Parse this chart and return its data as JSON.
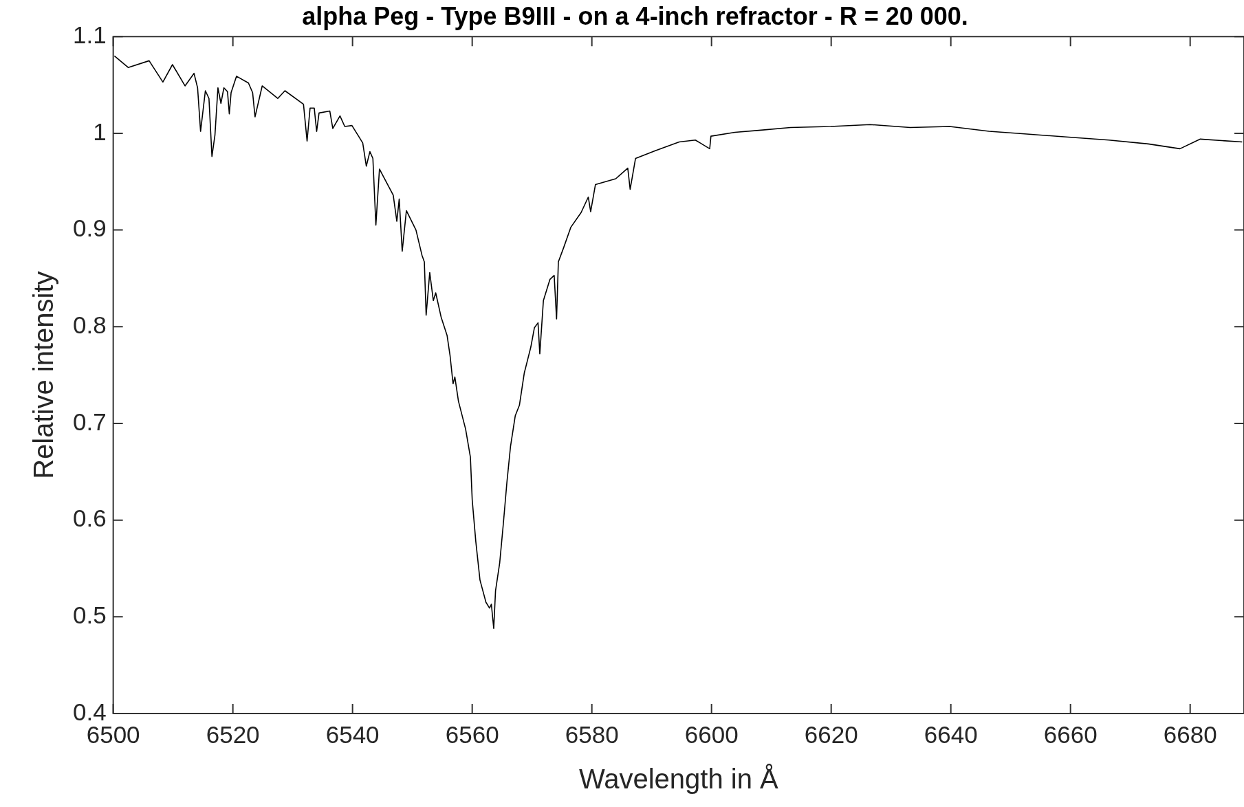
{
  "chart_data": {
    "type": "line",
    "title": "alpha Peg - Type B9III - on a 4-inch refractor - R = 20 000.",
    "xlabel": "Wavelength in Å",
    "ylabel": "Relative intensity",
    "xlim": [
      6500,
      6689
    ],
    "xticks": [
      6500,
      6520,
      6540,
      6560,
      6580,
      6600,
      6620,
      6640,
      6660,
      6680
    ],
    "ylim": [
      0.4,
      1.1
    ],
    "yticks": [
      0.4,
      0.5,
      0.6,
      0.7,
      0.8,
      0.9,
      1,
      1.1
    ],
    "grid": false,
    "legend": false,
    "marker": "none",
    "line_style": "solid",
    "series": [
      {
        "color": "#000000",
        "x": [
          6500.2,
          6502.5,
          6506,
          6508.3,
          6509.9,
          6512,
          6513.5,
          6514.1,
          6514.6,
          6515.4,
          6516,
          6516.5,
          6517,
          6517.5,
          6518,
          6518.5,
          6519.1,
          6519.4,
          6519.7,
          6520.6,
          6522.6,
          6523.3,
          6523.7,
          6524.9,
          6527.5,
          6528.7,
          6531.8,
          6532.4,
          6532.9,
          6533.6,
          6534,
          6534.4,
          6536.2,
          6536.7,
          6537.9,
          6538.7,
          6539.9,
          6541.7,
          6542.3,
          6542.9,
          6543.4,
          6543.9,
          6544.5,
          6545.6,
          6546.8,
          6547.4,
          6547.8,
          6548.3,
          6549,
          6550.6,
          6551.6,
          6552,
          6552.3,
          6552.9,
          6553.5,
          6553.9,
          6554.8,
          6555.8,
          6556.3,
          6556.8,
          6557.1,
          6557.7,
          6558.9,
          6559.7,
          6560,
          6560.6,
          6561.3,
          6562.3,
          6562.9,
          6563.2,
          6563.6,
          6563.9,
          6564.6,
          6565.2,
          6565.8,
          6566.4,
          6567.2,
          6567.9,
          6568.7,
          6569.8,
          6570.4,
          6571,
          6571.3,
          6571.9,
          6573,
          6573.7,
          6574.1,
          6574.4,
          6575.3,
          6576.5,
          6578.2,
          6579.4,
          6579.8,
          6580.6,
          6584,
          6586,
          6586.4,
          6587.3,
          6590.6,
          6594.6,
          6597.3,
          6599.7,
          6599.9,
          6603.9,
          6607.9,
          6613.2,
          6619.9,
          6626.5,
          6633.2,
          6639.8,
          6646.4,
          6653.1,
          6659.7,
          6666.4,
          6673,
          6678.3,
          6681.7,
          6688.7
        ],
        "values": [
          1.08,
          1.068,
          1.075,
          1.053,
          1.071,
          1.049,
          1.062,
          1.047,
          1.002,
          1.044,
          1.036,
          0.976,
          0.998,
          1.047,
          1.031,
          1.047,
          1.043,
          1.02,
          1.042,
          1.059,
          1.052,
          1.042,
          1.017,
          1.049,
          1.036,
          1.044,
          1.03,
          0.992,
          1.026,
          1.026,
          1.002,
          1.021,
          1.023,
          1.005,
          1.018,
          1.007,
          1.008,
          0.99,
          0.966,
          0.981,
          0.974,
          0.905,
          0.963,
          0.95,
          0.936,
          0.909,
          0.932,
          0.878,
          0.92,
          0.9,
          0.874,
          0.867,
          0.812,
          0.856,
          0.827,
          0.835,
          0.81,
          0.791,
          0.77,
          0.741,
          0.748,
          0.723,
          0.694,
          0.665,
          0.621,
          0.578,
          0.538,
          0.515,
          0.509,
          0.513,
          0.488,
          0.527,
          0.556,
          0.596,
          0.639,
          0.676,
          0.708,
          0.719,
          0.752,
          0.779,
          0.799,
          0.804,
          0.772,
          0.827,
          0.849,
          0.853,
          0.808,
          0.867,
          0.882,
          0.903,
          0.918,
          0.934,
          0.919,
          0.947,
          0.953,
          0.964,
          0.942,
          0.974,
          0.982,
          0.991,
          0.993,
          0.984,
          0.997,
          1.001,
          1.003,
          1.006,
          1.007,
          1.009,
          1.006,
          1.007,
          1.002,
          0.999,
          0.996,
          0.993,
          0.989,
          0.984,
          0.994,
          0.991
        ]
      }
    ]
  }
}
